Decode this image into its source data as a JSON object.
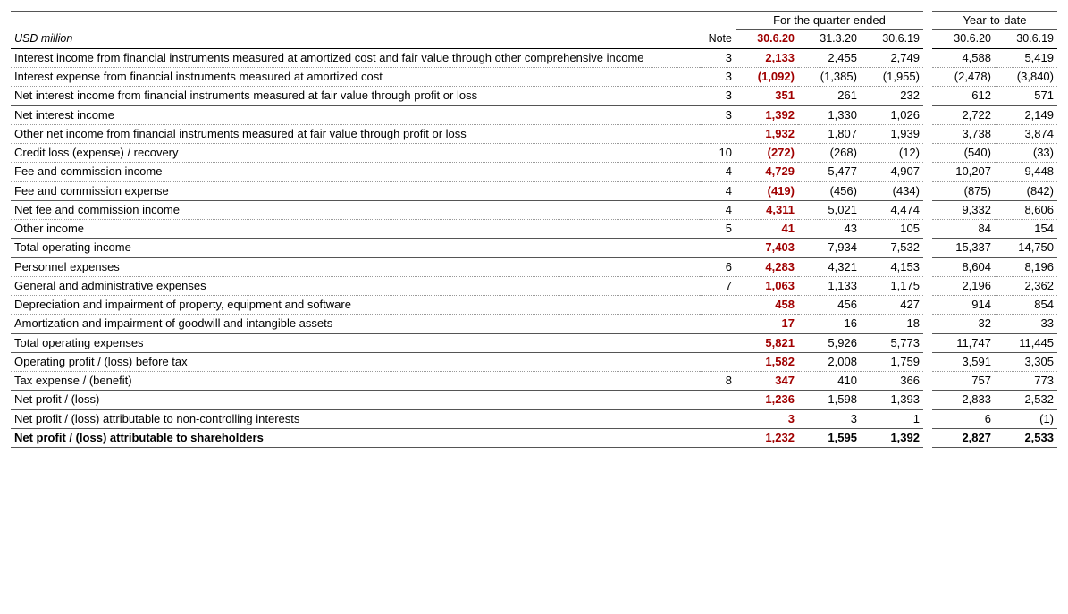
{
  "accent_color": "#a00000",
  "header": {
    "unit_label": "USD million",
    "note_label": "Note",
    "group_quarter": "For the quarter ended",
    "group_ytd": "Year-to-date",
    "periods": [
      "30.6.20",
      "31.3.20",
      "30.6.19",
      "30.6.20",
      "30.6.19"
    ]
  },
  "rows": [
    {
      "label": "Interest income from financial instruments measured at amortized cost and fair value through other comprehensive income",
      "note": "3",
      "v": [
        "2,133",
        "2,455",
        "2,749",
        "4,588",
        "5,419"
      ],
      "sep": "dotted"
    },
    {
      "label": "Interest expense from financial instruments measured at amortized cost",
      "note": "3",
      "v": [
        "(1,092)",
        "(1,385)",
        "(1,955)",
        "(2,478)",
        "(3,840)"
      ],
      "sep": "dotted"
    },
    {
      "label": "Net interest income from financial instruments measured at fair value through profit or loss",
      "note": "3",
      "v": [
        "351",
        "261",
        "232",
        "612",
        "571"
      ],
      "sep": "thin"
    },
    {
      "label": "Net interest income",
      "note": "3",
      "v": [
        "1,392",
        "1,330",
        "1,026",
        "2,722",
        "2,149"
      ],
      "sep": "dotted"
    },
    {
      "label": "Other net income from financial instruments measured at fair value through profit or loss",
      "note": "",
      "v": [
        "1,932",
        "1,807",
        "1,939",
        "3,738",
        "3,874"
      ],
      "sep": "dotted"
    },
    {
      "label": "Credit loss (expense) / recovery",
      "note": "10",
      "v": [
        "(272)",
        "(268)",
        "(12)",
        "(540)",
        "(33)"
      ],
      "sep": "dotted"
    },
    {
      "label": "Fee and commission income",
      "note": "4",
      "v": [
        "4,729",
        "5,477",
        "4,907",
        "10,207",
        "9,448"
      ],
      "sep": "dotted"
    },
    {
      "label": "Fee and commission expense",
      "note": "4",
      "v": [
        "(419)",
        "(456)",
        "(434)",
        "(875)",
        "(842)"
      ],
      "sep": "thin"
    },
    {
      "label": "Net fee and commission income",
      "note": "4",
      "v": [
        "4,311",
        "5,021",
        "4,474",
        "9,332",
        "8,606"
      ],
      "sep": "dotted"
    },
    {
      "label": "Other income",
      "note": "5",
      "v": [
        "41",
        "43",
        "105",
        "84",
        "154"
      ],
      "sep": "thin"
    },
    {
      "label": "Total operating income",
      "note": "",
      "v": [
        "7,403",
        "7,934",
        "7,532",
        "15,337",
        "14,750"
      ],
      "sep": "thick"
    },
    {
      "label": "Personnel expenses",
      "note": "6",
      "v": [
        "4,283",
        "4,321",
        "4,153",
        "8,604",
        "8,196"
      ],
      "sep": "dotted"
    },
    {
      "label": "General and administrative expenses",
      "note": "7",
      "v": [
        "1,063",
        "1,133",
        "1,175",
        "2,196",
        "2,362"
      ],
      "sep": "dotted"
    },
    {
      "label": "Depreciation and impairment of property, equipment and software",
      "note": "",
      "v": [
        "458",
        "456",
        "427",
        "914",
        "854"
      ],
      "sep": "dotted"
    },
    {
      "label": "Amortization and impairment of goodwill and intangible assets",
      "note": "",
      "v": [
        "17",
        "16",
        "18",
        "32",
        "33"
      ],
      "sep": "thin"
    },
    {
      "label": "Total operating expenses",
      "note": "",
      "v": [
        "5,821",
        "5,926",
        "5,773",
        "11,747",
        "11,445"
      ],
      "sep": "thick"
    },
    {
      "label": "Operating profit / (loss) before tax",
      "note": "",
      "v": [
        "1,582",
        "2,008",
        "1,759",
        "3,591",
        "3,305"
      ],
      "sep": "dotted"
    },
    {
      "label": "Tax expense / (benefit)",
      "note": "8",
      "v": [
        "347",
        "410",
        "366",
        "757",
        "773"
      ],
      "sep": "thin"
    },
    {
      "label": "Net profit / (loss)",
      "note": "",
      "v": [
        "1,236",
        "1,598",
        "1,393",
        "2,833",
        "2,532"
      ],
      "sep": "thick"
    },
    {
      "label": "Net profit / (loss) attributable to non-controlling interests",
      "note": "",
      "v": [
        "3",
        "3",
        "1",
        "6",
        "(1)"
      ],
      "sep": "thin"
    },
    {
      "label": "Net profit / (loss) attributable to shareholders",
      "note": "",
      "v": [
        "1,232",
        "1,595",
        "1,392",
        "2,827",
        "2,533"
      ],
      "sep": "thick",
      "bold": true
    }
  ]
}
